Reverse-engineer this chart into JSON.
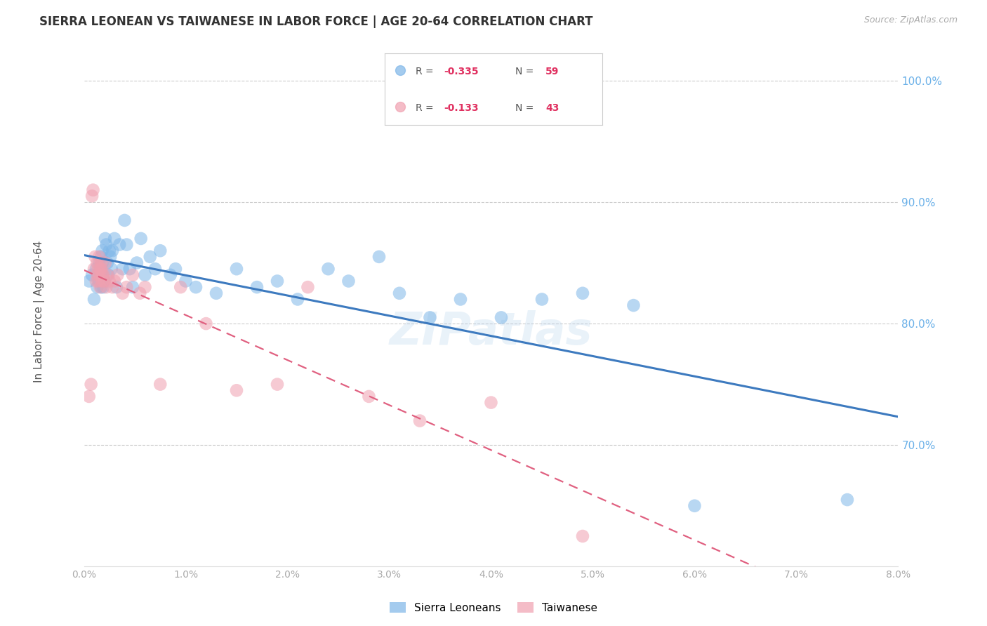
{
  "title": "SIERRA LEONEAN VS TAIWANESE IN LABOR FORCE | AGE 20-64 CORRELATION CHART",
  "source": "Source: ZipAtlas.com",
  "ylabel": "In Labor Force | Age 20-64",
  "x_min": 0.0,
  "x_max": 0.08,
  "y_min": 60.0,
  "y_max": 102.0,
  "yticks": [
    70.0,
    80.0,
    90.0,
    100.0
  ],
  "xticks": [
    0.0,
    0.01,
    0.02,
    0.03,
    0.04,
    0.05,
    0.06,
    0.07,
    0.08
  ],
  "xtick_labels": [
    "0.0%",
    "1.0%",
    "2.0%",
    "3.0%",
    "4.0%",
    "5.0%",
    "6.0%",
    "7.0%",
    "8.0%"
  ],
  "sierra_R": -0.335,
  "sierra_N": 59,
  "taiwanese_R": -0.133,
  "taiwanese_N": 43,
  "sierra_color": "#7eb6e8",
  "taiwanese_color": "#f0a0b0",
  "sierra_line_color": "#3d7abf",
  "taiwanese_line_color": "#e06080",
  "background_color": "#ffffff",
  "grid_color": "#cccccc",
  "axis_color": "#6ab0e8",
  "title_color": "#333333",
  "watermark": "ZIPatlas",
  "sierra_x": [
    0.0005,
    0.0008,
    0.001,
    0.0012,
    0.0013,
    0.0014,
    0.0015,
    0.0015,
    0.0016,
    0.0017,
    0.0017,
    0.0018,
    0.0018,
    0.0018,
    0.0019,
    0.002,
    0.0021,
    0.0022,
    0.0023,
    0.0024,
    0.0025,
    0.0026,
    0.0027,
    0.0028,
    0.003,
    0.0032,
    0.0035,
    0.0038,
    0.004,
    0.0042,
    0.0045,
    0.0048,
    0.0052,
    0.0056,
    0.006,
    0.0065,
    0.007,
    0.0075,
    0.0085,
    0.009,
    0.01,
    0.011,
    0.013,
    0.015,
    0.017,
    0.019,
    0.021,
    0.024,
    0.026,
    0.029,
    0.031,
    0.034,
    0.037,
    0.041,
    0.045,
    0.049,
    0.054,
    0.06,
    0.075
  ],
  "sierra_y": [
    83.5,
    84.0,
    82.0,
    84.5,
    83.0,
    84.0,
    85.0,
    83.5,
    84.0,
    85.5,
    83.0,
    85.0,
    84.0,
    86.0,
    83.0,
    83.5,
    87.0,
    86.5,
    85.0,
    84.0,
    86.0,
    85.5,
    84.5,
    86.0,
    87.0,
    83.0,
    86.5,
    84.5,
    88.5,
    86.5,
    84.5,
    83.0,
    85.0,
    87.0,
    84.0,
    85.5,
    84.5,
    86.0,
    84.0,
    84.5,
    83.5,
    83.0,
    82.5,
    84.5,
    83.0,
    83.5,
    82.0,
    84.5,
    83.5,
    85.5,
    82.5,
    80.5,
    82.0,
    80.5,
    82.0,
    82.5,
    81.5,
    65.0,
    65.5
  ],
  "taiwanese_x": [
    0.0005,
    0.0007,
    0.0008,
    0.0009,
    0.001,
    0.0011,
    0.0012,
    0.0013,
    0.0013,
    0.0014,
    0.0014,
    0.0015,
    0.0015,
    0.0016,
    0.0016,
    0.0017,
    0.0017,
    0.0018,
    0.0018,
    0.0019,
    0.002,
    0.0021,
    0.0022,
    0.0023,
    0.0025,
    0.0028,
    0.003,
    0.0033,
    0.0038,
    0.0042,
    0.0048,
    0.0055,
    0.006,
    0.0075,
    0.0095,
    0.012,
    0.015,
    0.019,
    0.022,
    0.028,
    0.033,
    0.04,
    0.049
  ],
  "taiwanese_y": [
    74.0,
    75.0,
    90.5,
    91.0,
    84.5,
    85.5,
    83.5,
    84.0,
    85.0,
    83.5,
    84.5,
    84.0,
    85.5,
    83.0,
    84.5,
    84.5,
    85.0,
    84.0,
    83.5,
    84.0,
    83.5,
    85.0,
    83.0,
    84.0,
    83.5,
    83.0,
    83.5,
    84.0,
    82.5,
    83.0,
    84.0,
    82.5,
    83.0,
    75.0,
    83.0,
    80.0,
    74.5,
    75.0,
    83.0,
    74.0,
    72.0,
    73.5,
    62.5
  ]
}
